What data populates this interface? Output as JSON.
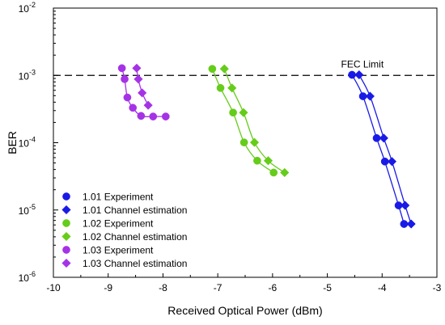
{
  "chart_data": {
    "type": "line",
    "xlabel": "Received Optical Power (dBm)",
    "ylabel": "BER",
    "xlim": [
      -10,
      -3
    ],
    "ylim_log10": [
      -6,
      -2
    ],
    "yscale": "log",
    "x_ticks": [
      "-10",
      "-9",
      "-8",
      "-7",
      "-6",
      "-5",
      "-4",
      "-3"
    ],
    "y_ticks": [
      {
        "base": "10",
        "exp": "-6"
      },
      {
        "base": "10",
        "exp": "-5"
      },
      {
        "base": "10",
        "exp": "-4"
      },
      {
        "base": "10",
        "exp": "-3"
      },
      {
        "base": "10",
        "exp": "-2"
      }
    ],
    "reference_line": {
      "label": "FEC Limit",
      "y": 0.001
    },
    "legend_position": "bottom-left",
    "series": [
      {
        "name": "1.01 Experiment",
        "marker": "circle",
        "color": "#1a1ae6",
        "points": [
          {
            "x": -4.55,
            "y": 0.00102
          },
          {
            "x": -4.35,
            "y": 0.00049
          },
          {
            "x": -4.1,
            "y": 0.000117
          },
          {
            "x": -3.95,
            "y": 5.25e-05
          },
          {
            "x": -3.7,
            "y": 1.17e-05
          },
          {
            "x": -3.6,
            "y": 6.2e-06
          }
        ]
      },
      {
        "name": "1.01 Channel estimation",
        "marker": "diamond",
        "color": "#1a1ae6",
        "points": [
          {
            "x": -4.42,
            "y": 0.00102
          },
          {
            "x": -4.22,
            "y": 0.00049
          },
          {
            "x": -3.97,
            "y": 0.000117
          },
          {
            "x": -3.82,
            "y": 5.25e-05
          },
          {
            "x": -3.58,
            "y": 1.17e-05
          },
          {
            "x": -3.47,
            "y": 6.2e-06
          }
        ]
      },
      {
        "name": "1.02 Experiment",
        "marker": "circle",
        "color": "#66cc1a",
        "points": [
          {
            "x": -7.1,
            "y": 0.00125
          },
          {
            "x": -6.95,
            "y": 0.00065
          },
          {
            "x": -6.72,
            "y": 0.00028
          },
          {
            "x": -6.52,
            "y": 0.000101
          },
          {
            "x": -6.28,
            "y": 5.4e-05
          },
          {
            "x": -5.98,
            "y": 3.6e-05
          }
        ]
      },
      {
        "name": "1.02 Channel estimation",
        "marker": "diamond",
        "color": "#66cc1a",
        "points": [
          {
            "x": -6.88,
            "y": 0.00125
          },
          {
            "x": -6.74,
            "y": 0.00065
          },
          {
            "x": -6.53,
            "y": 0.00028
          },
          {
            "x": -6.33,
            "y": 0.000101
          },
          {
            "x": -6.08,
            "y": 5.4e-05
          },
          {
            "x": -5.78,
            "y": 3.6e-05
          }
        ]
      },
      {
        "name": "1.03 Experiment",
        "marker": "circle",
        "color": "#a533e6",
        "points": [
          {
            "x": -8.75,
            "y": 0.00128
          },
          {
            "x": -8.7,
            "y": 0.00088
          },
          {
            "x": -8.65,
            "y": 0.00047
          },
          {
            "x": -8.55,
            "y": 0.00033
          },
          {
            "x": -8.4,
            "y": 0.00025
          },
          {
            "x": -8.18,
            "y": 0.000245
          },
          {
            "x": -7.95,
            "y": 0.000245
          }
        ]
      },
      {
        "name": "1.03 Channel estimation",
        "marker": "diamond",
        "color": "#a533e6",
        "points": [
          {
            "x": -8.48,
            "y": 0.00128
          },
          {
            "x": -8.45,
            "y": 0.00088
          },
          {
            "x": -8.38,
            "y": 0.00055
          },
          {
            "x": -8.27,
            "y": 0.00036
          }
        ]
      }
    ]
  }
}
